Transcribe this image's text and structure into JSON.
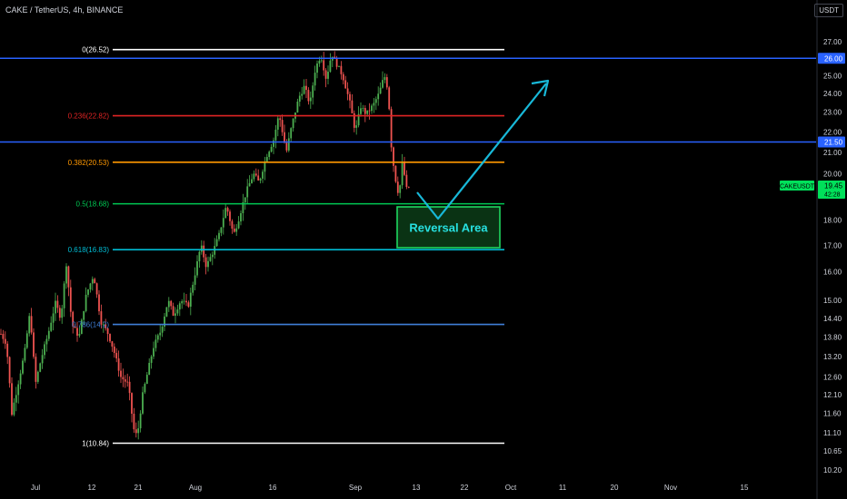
{
  "header": {
    "symbol_title": "CAKE / TetherUS, 4h, BINANCE",
    "currency": "USDT"
  },
  "colors": {
    "background": "#000000",
    "candle_up": "#4caf50",
    "candle_down": "#ef5350",
    "axis_text": "#d1d4dc",
    "blue_level": "#2962ff",
    "arrow": "#18b8d8",
    "reversal_box_border": "#1ed760",
    "reversal_box_fill": "#0a3314",
    "ticker_badge": "#00e05a"
  },
  "chart_data": {
    "type": "candlestick",
    "x_ticks": [
      "Jul",
      "12",
      "21",
      "Aug",
      "16",
      "Sep",
      "13",
      "22",
      "Oct",
      "11",
      "20",
      "Nov",
      "15"
    ],
    "y_ticks": [
      "27.00",
      "25.00",
      "24.00",
      "23.00",
      "22.00",
      "21.00",
      "20.00",
      "18.00",
      "17.00",
      "16.00",
      "15.00",
      "14.40",
      "13.80",
      "13.20",
      "12.60",
      "12.10",
      "11.60",
      "11.10",
      "10.65",
      "10.20"
    ],
    "y_axis_scale": "log",
    "fib_levels": [
      {
        "label": "0(26.52)",
        "value": 26.52,
        "color": "#ffffff"
      },
      {
        "label": "0.236(22.82)",
        "value": 22.82,
        "color": "#e02424"
      },
      {
        "label": "0.382(20.53)",
        "value": 20.53,
        "color": "#ff9800"
      },
      {
        "label": "0.5(18.68)",
        "value": 18.68,
        "color": "#00c853"
      },
      {
        "label": "0.618(16.83)",
        "value": 16.83,
        "color": "#00bcd4"
      },
      {
        "label": "0.786(14.2)",
        "value": 14.2,
        "color": "#3f7fd8"
      },
      {
        "label": "1(10.84)",
        "value": 10.84,
        "color": "#ffffff"
      }
    ],
    "horizontal_levels": [
      {
        "label": "26.00",
        "value": 26.0
      },
      {
        "label": "21.50",
        "value": 21.5
      }
    ],
    "current_price": {
      "ticker": "CAKEUSDT",
      "price": "19.45",
      "countdown": "42:28"
    },
    "annotation": {
      "text": "Reversal Area"
    },
    "candles": {
      "note_ohlc": "Approximate 4h OHLC path (open,high,low,close) read from the chart",
      "path_points": [
        [
          0,
          13.9
        ],
        [
          6,
          13.6
        ],
        [
          12,
          11.6
        ],
        [
          18,
          12.3
        ],
        [
          26,
          13.3
        ],
        [
          32,
          14.6
        ],
        [
          38,
          12.4
        ],
        [
          44,
          13.1
        ],
        [
          52,
          13.9
        ],
        [
          60,
          14.9
        ],
        [
          66,
          14.4
        ],
        [
          72,
          16.3
        ],
        [
          78,
          14.2
        ],
        [
          86,
          13.8
        ],
        [
          94,
          15.2
        ],
        [
          102,
          15.9
        ],
        [
          110,
          14.3
        ],
        [
          118,
          13.9
        ],
        [
          124,
          13.4
        ],
        [
          132,
          12.6
        ],
        [
          140,
          12.4
        ],
        [
          146,
          11.2
        ],
        [
          150,
          11.0
        ],
        [
          156,
          12.1
        ],
        [
          162,
          12.8
        ],
        [
          168,
          13.5
        ],
        [
          176,
          14.0
        ],
        [
          184,
          15.0
        ],
        [
          190,
          14.5
        ],
        [
          198,
          15.0
        ],
        [
          206,
          14.8
        ],
        [
          214,
          16.0
        ],
        [
          220,
          17.0
        ],
        [
          226,
          16.2
        ],
        [
          234,
          16.8
        ],
        [
          240,
          17.4
        ],
        [
          248,
          18.6
        ],
        [
          256,
          17.4
        ],
        [
          262,
          18.1
        ],
        [
          270,
          19.2
        ],
        [
          278,
          20.0
        ],
        [
          284,
          19.6
        ],
        [
          292,
          20.8
        ],
        [
          300,
          21.6
        ],
        [
          306,
          22.9
        ],
        [
          314,
          21.0
        ],
        [
          320,
          22.3
        ],
        [
          328,
          23.8
        ],
        [
          334,
          24.4
        ],
        [
          340,
          23.4
        ],
        [
          346,
          25.4
        ],
        [
          352,
          26.2
        ],
        [
          358,
          24.8
        ],
        [
          364,
          26.3
        ],
        [
          370,
          25.6
        ],
        [
          376,
          25.0
        ],
        [
          384,
          23.5
        ],
        [
          390,
          22.0
        ],
        [
          396,
          23.3
        ],
        [
          402,
          22.9
        ],
        [
          410,
          23.4
        ],
        [
          416,
          24.0
        ],
        [
          422,
          25.0
        ],
        [
          426,
          24.2
        ],
        [
          430,
          21.0
        ],
        [
          434,
          19.8
        ],
        [
          438,
          19.0
        ],
        [
          442,
          20.6
        ],
        [
          446,
          19.3
        ],
        [
          450,
          19.45
        ]
      ]
    }
  }
}
